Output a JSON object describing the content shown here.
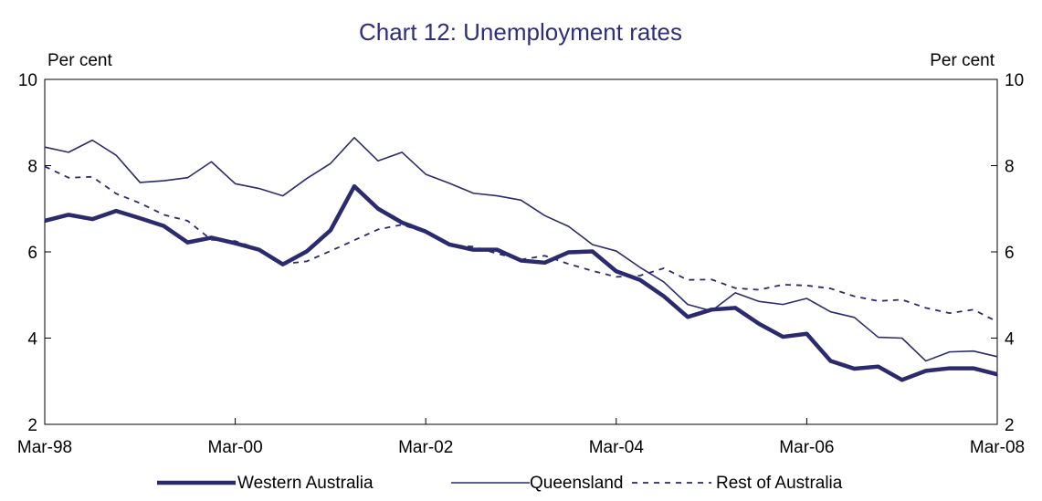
{
  "chart_data": {
    "type": "line",
    "title": "Chart 12: Unemployment rates",
    "left_unit_label": "Per cent",
    "right_unit_label": "Per cent",
    "ylim": [
      2,
      10
    ],
    "y_ticks": [
      2,
      4,
      6,
      8,
      10
    ],
    "x_tick_labels": [
      "Mar-98",
      "Mar-00",
      "Mar-02",
      "Mar-04",
      "Mar-06",
      "Mar-08"
    ],
    "x_tick_quarters": [
      0,
      8,
      16,
      24,
      32,
      40
    ],
    "x_range_quarters": [
      0,
      40
    ],
    "grid": false,
    "legend_position": "bottom",
    "colors": {
      "series": "#2b2a6e",
      "axis": "#000000",
      "title": "#2e2e7a"
    },
    "series": [
      {
        "name": "Western Australia",
        "style": "thick",
        "values": [
          6.72,
          6.86,
          6.76,
          6.95,
          6.78,
          6.6,
          6.22,
          6.33,
          6.2,
          6.05,
          5.71,
          6.01,
          6.5,
          7.52,
          7.0,
          6.68,
          6.47,
          6.17,
          6.05,
          6.05,
          5.8,
          5.75,
          5.99,
          6.01,
          5.55,
          5.35,
          4.97,
          4.49,
          4.66,
          4.7,
          4.33,
          4.03,
          4.1,
          3.47,
          3.29,
          3.34,
          3.03,
          3.24,
          3.3,
          3.3,
          3.16
        ]
      },
      {
        "name": "Queensland",
        "style": "thin",
        "values": [
          8.43,
          8.31,
          8.59,
          8.24,
          7.61,
          7.65,
          7.72,
          8.09,
          7.58,
          7.47,
          7.3,
          7.7,
          8.05,
          8.65,
          8.11,
          8.31,
          7.8,
          7.59,
          7.36,
          7.3,
          7.2,
          6.84,
          6.59,
          6.17,
          6.02,
          5.64,
          5.3,
          4.78,
          4.63,
          5.05,
          4.85,
          4.78,
          4.92,
          4.61,
          4.48,
          4.02,
          4.0,
          3.47,
          3.68,
          3.7,
          3.57
        ]
      },
      {
        "name": "Rest of Australia",
        "style": "dashed",
        "values": [
          7.98,
          7.72,
          7.74,
          7.35,
          7.13,
          6.86,
          6.72,
          6.28,
          6.25,
          6.07,
          5.72,
          5.78,
          6.02,
          6.27,
          6.52,
          6.63,
          6.45,
          6.16,
          6.12,
          5.96,
          5.82,
          5.91,
          5.72,
          5.56,
          5.42,
          5.45,
          5.62,
          5.35,
          5.36,
          5.16,
          5.12,
          5.24,
          5.22,
          5.15,
          4.97,
          4.86,
          4.89,
          4.7,
          4.58,
          4.66,
          4.38
        ]
      }
    ]
  }
}
